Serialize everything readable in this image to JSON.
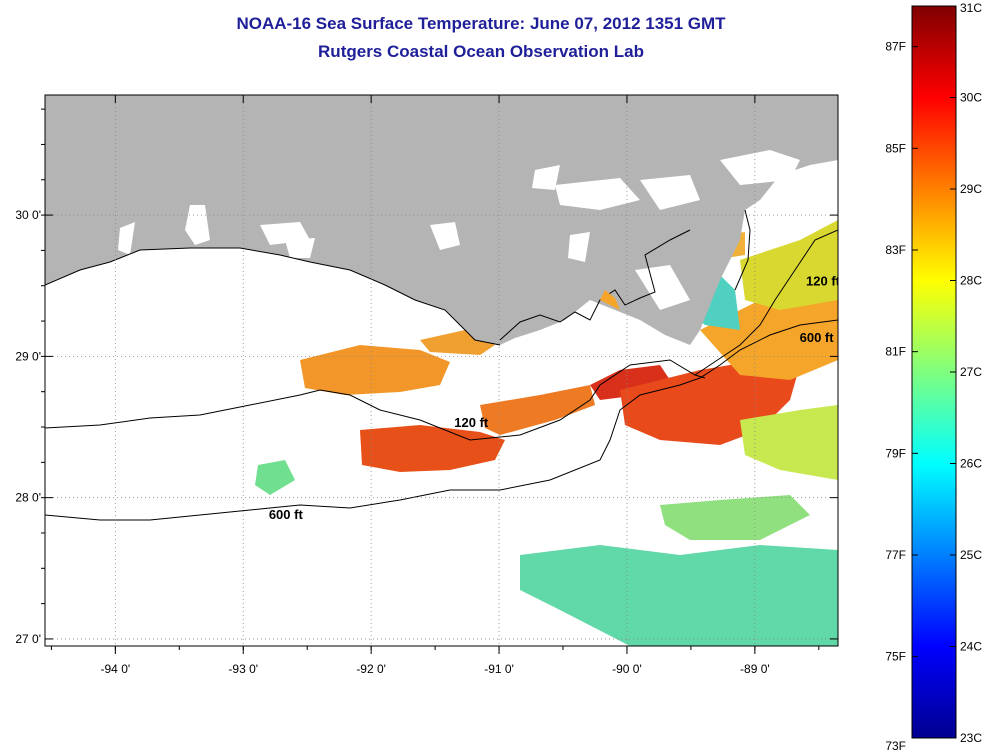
{
  "header": {
    "title_line1": "NOAA-16 Sea Surface Temperature:  June 07, 2012 1351 GMT",
    "title_line2": "Rutgers Coastal Ocean Observation Lab"
  },
  "map": {
    "lon_range": [
      -94.55,
      -88.35
    ],
    "lat_range": [
      26.95,
      30.85
    ],
    "x_ticks": [
      {
        "value": -94,
        "label": "-94 0'"
      },
      {
        "value": -93,
        "label": "-93 0'"
      },
      {
        "value": -92,
        "label": "-92 0'"
      },
      {
        "value": -91,
        "label": "-91 0'"
      },
      {
        "value": -90,
        "label": "-90 0'"
      },
      {
        "value": -89,
        "label": "-89 0'"
      }
    ],
    "y_ticks": [
      {
        "value": 30,
        "label": "30 0'"
      },
      {
        "value": 29,
        "label": "29 0'"
      },
      {
        "value": 28,
        "label": "28 0'"
      },
      {
        "value": 27,
        "label": "27 0'"
      }
    ],
    "grid": "dotted",
    "colors": {
      "land": "#b4b4b4",
      "water": "#ffffff",
      "contour": "#000000"
    },
    "contour_labels": [
      {
        "text": "120 ft",
        "lon": -91.35,
        "lat": 28.5
      },
      {
        "text": "600 ft",
        "lon": -92.8,
        "lat": 27.85
      },
      {
        "text": "120 ft",
        "lon": -88.6,
        "lat": 29.5
      },
      {
        "text": "600 ft",
        "lon": -88.65,
        "lat": 29.1
      }
    ]
  },
  "colorbar": {
    "range_c": [
      23,
      31
    ],
    "celsius_labels": [
      "31C",
      "30C",
      "29C",
      "28C",
      "27C",
      "26C",
      "25C",
      "24C",
      "23C"
    ],
    "fahrenheit_labels": [
      "87F",
      "85F",
      "83F",
      "81F",
      "79F",
      "77F",
      "75F",
      "73F"
    ],
    "fahrenheit_values": [
      87,
      85,
      83,
      81,
      79,
      77,
      75,
      73
    ]
  }
}
